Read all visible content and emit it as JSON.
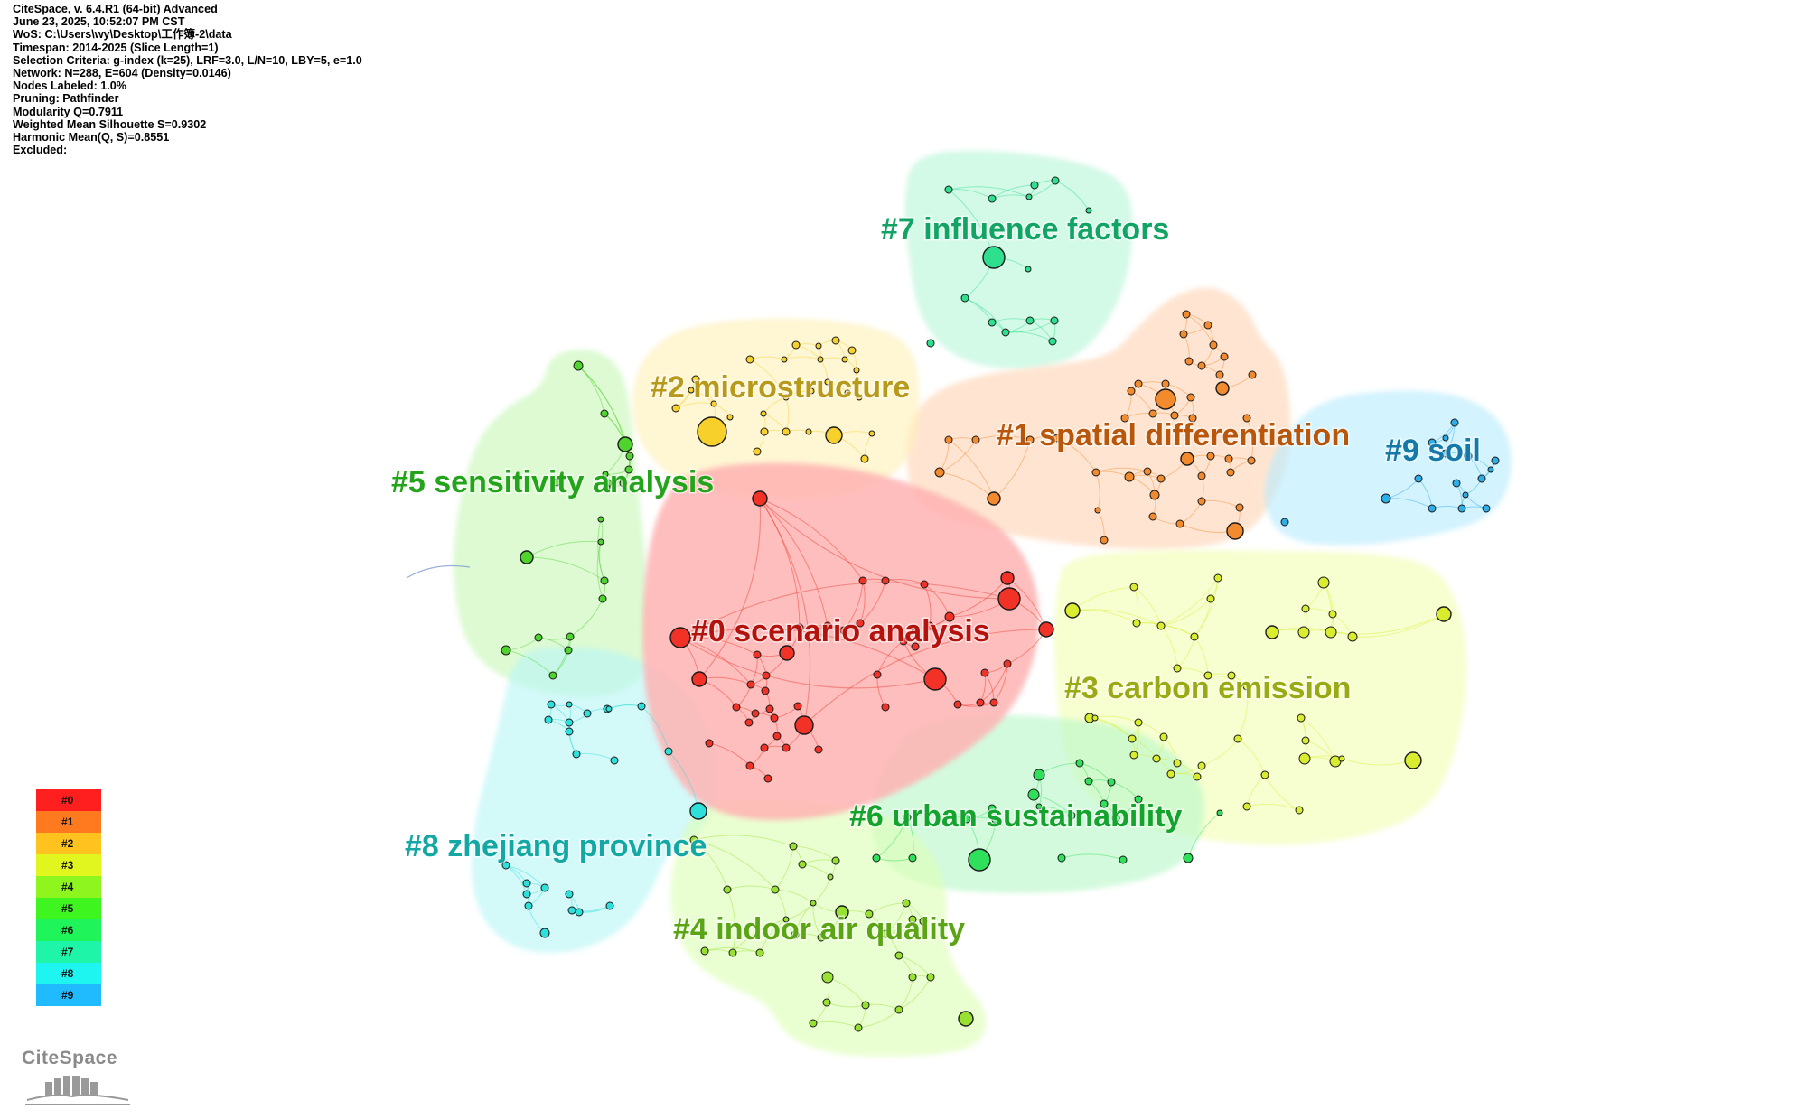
{
  "header_lines": [
    "CiteSpace, v. 6.4.R1 (64-bit) Advanced",
    "June 23, 2025, 10:52:07 PM CST",
    "WoS: C:\\Users\\wy\\Desktop\\工作簿-2\\data",
    "Timespan: 2014-2025 (Slice Length=1)",
    "Selection Criteria: g-index (k=25), LRF=3.0, L/N=10, LBY=5, e=1.0",
    "Network: N=288, E=604 (Density=0.0146)",
    "Nodes Labeled: 1.0%",
    "Pruning: Pathfinder",
    "Modularity Q=0.7911",
    "Weighted Mean Silhouette S=0.9302",
    "Harmonic Mean(Q, S)=0.8551",
    "Excluded:"
  ],
  "clusters": [
    {
      "id": "#0",
      "label": "#0 scenario analysis",
      "fill": "#ffb3b3",
      "label_color": "#b3120d",
      "node_color": "#f23226"
    },
    {
      "id": "#1",
      "label": "#1 spatial differentiation",
      "fill": "#ffd5b5",
      "label_color": "#b8560c",
      "node_color": "#f28a2e"
    },
    {
      "id": "#2",
      "label": "#2 microstructure",
      "fill": "#fff0b8",
      "label_color": "#b89a1a",
      "node_color": "#f7d02c"
    },
    {
      "id": "#3",
      "label": "#3 carbon emission",
      "fill": "#f2ffb3",
      "label_color": "#9aaa14",
      "node_color": "#d9ed2e"
    },
    {
      "id": "#4",
      "label": "#4 indoor air quality",
      "fill": "#ddffb5",
      "label_color": "#5aa416",
      "node_color": "#98e032"
    },
    {
      "id": "#5",
      "label": "#5 sensitivity analysis",
      "fill": "#c8f7b8",
      "label_color": "#23a41a",
      "node_color": "#4fd42e"
    },
    {
      "id": "#6",
      "label": "#6 urban sustainability",
      "fill": "#b8f7c8",
      "label_color": "#14a42e",
      "node_color": "#2ee05a"
    },
    {
      "id": "#7",
      "label": "#7 influence factors",
      "fill": "#b8f5d8",
      "label_color": "#12a464",
      "node_color": "#2ee08e"
    },
    {
      "id": "#8",
      "label": "#8 zhejiang province",
      "fill": "#b8f5f5",
      "label_color": "#14a8a4",
      "node_color": "#2ee0dc"
    },
    {
      "id": "#9",
      "label": "#9 soil",
      "fill": "#b8ebff",
      "label_color": "#1478a8",
      "node_color": "#2eaee6"
    }
  ],
  "legend": {
    "items": [
      {
        "label": "#0",
        "color": "#ff1f1f"
      },
      {
        "label": "#1",
        "color": "#ff7a1f"
      },
      {
        "label": "#2",
        "color": "#ffc21f"
      },
      {
        "label": "#3",
        "color": "#e1f51f"
      },
      {
        "label": "#4",
        "color": "#8ef51f"
      },
      {
        "label": "#5",
        "color": "#3ef51f"
      },
      {
        "label": "#6",
        "color": "#1ff55a"
      },
      {
        "label": "#7",
        "color": "#1ff5a8"
      },
      {
        "label": "#8",
        "color": "#1ff5f0"
      },
      {
        "label": "#9",
        "color": "#1fbaff"
      }
    ]
  },
  "logo_text": "CiteSpace"
}
